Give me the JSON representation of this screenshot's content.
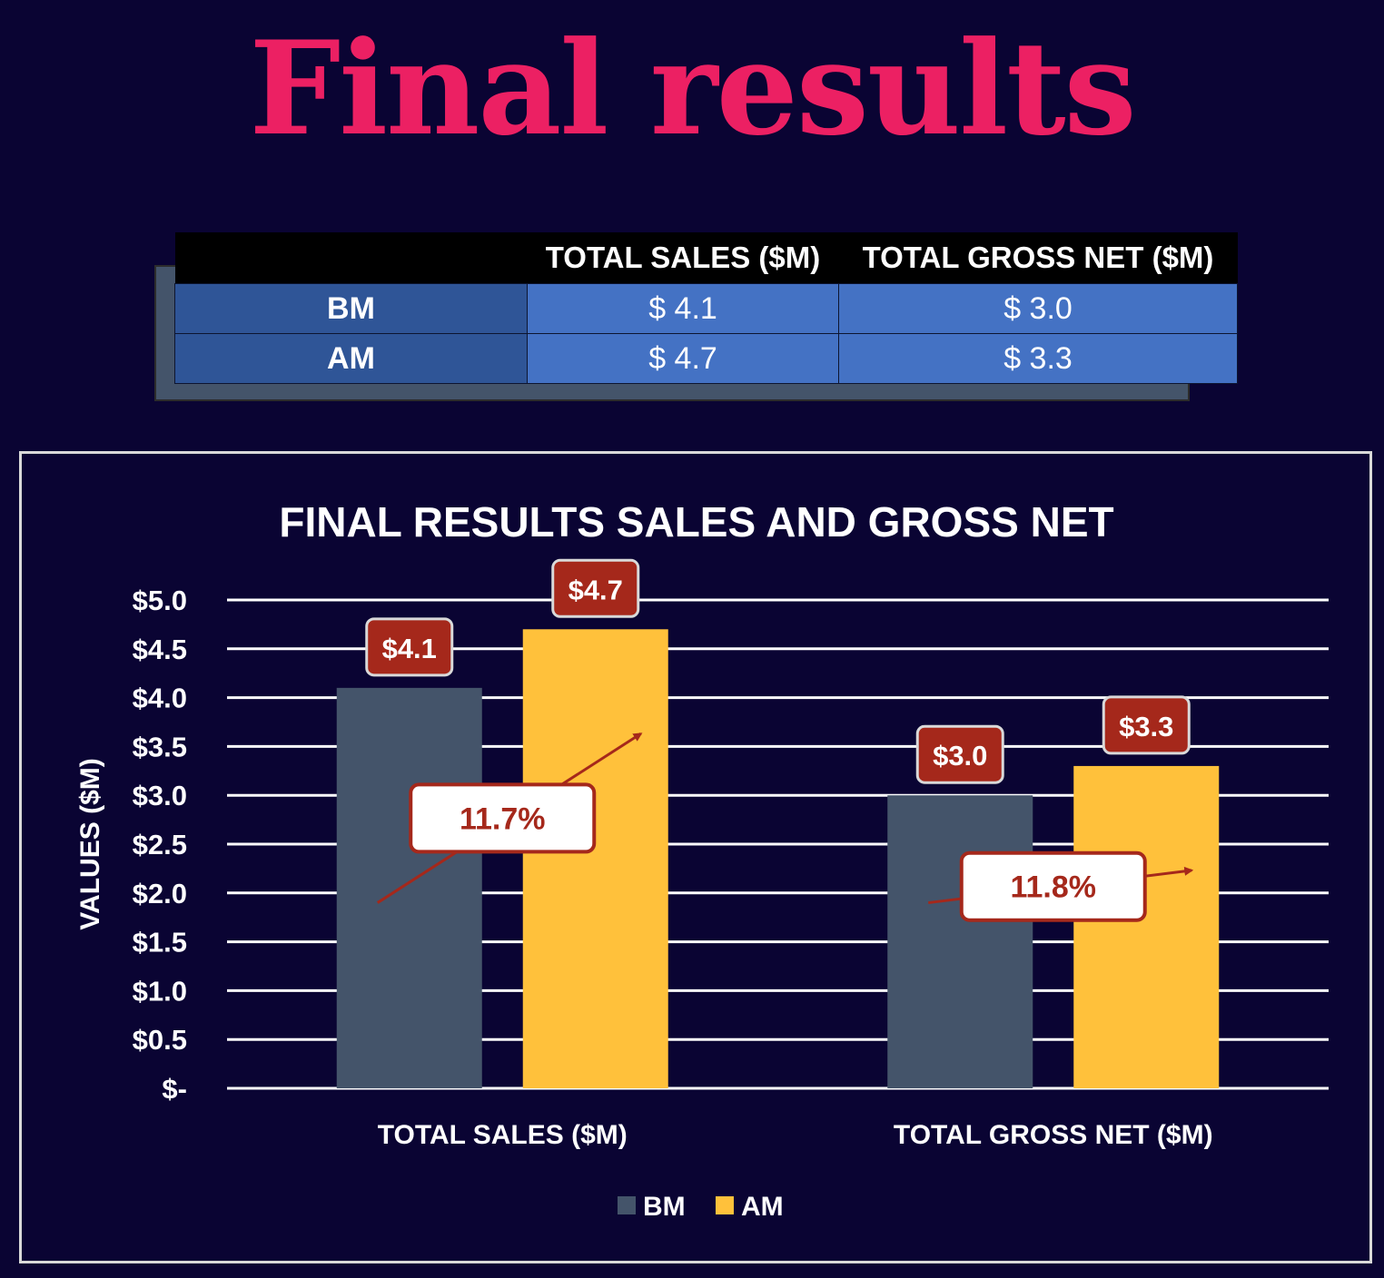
{
  "page": {
    "title": "Final results"
  },
  "summary_table": {
    "headers": [
      "",
      "TOTAL SALES ($M)",
      "TOTAL GROSS NET ($M)"
    ],
    "rows": [
      {
        "label": "BM",
        "total_sales": "$ 4.1",
        "total_gross_net": "$ 3.0"
      },
      {
        "label": "AM",
        "total_sales": "$ 4.7",
        "total_gross_net": "$ 3.3"
      }
    ]
  },
  "chart_data": {
    "type": "bar",
    "title": "FINAL RESULTS SALES AND GROSS NET",
    "xlabel": "",
    "ylabel": "VALUES ($M)",
    "categories": [
      "TOTAL SALES ($M)",
      "TOTAL GROSS NET ($M)"
    ],
    "series": [
      {
        "name": "BM",
        "values": [
          4.1,
          3.0
        ],
        "labels": [
          "$4.1",
          "$3.0"
        ],
        "color": "#44546a"
      },
      {
        "name": "AM",
        "values": [
          4.7,
          3.3
        ],
        "labels": [
          "$4.7",
          "$3.3"
        ],
        "color": "#ffc13b"
      }
    ],
    "ylim": [
      0,
      5.0
    ],
    "yticks": [
      0,
      0.5,
      1.0,
      1.5,
      2.0,
      2.5,
      3.0,
      3.5,
      4.0,
      4.5,
      5.0
    ],
    "ytick_labels": [
      "$-",
      "$0.5",
      "$1.0",
      "$1.5",
      "$2.0",
      "$2.5",
      "$3.0",
      "$3.5",
      "$4.0",
      "$4.5",
      "$5.0"
    ],
    "annotations": [
      "11.7%",
      "11.8%"
    ],
    "grid": true,
    "legend_position": "bottom",
    "colors": {
      "background": "#0a0433",
      "gridline": "#ffffff",
      "data_label_bg": "#a5281b",
      "annotation_border": "#a5281b",
      "annotation_text": "#a5281b",
      "arrow": "#a5281b"
    }
  }
}
